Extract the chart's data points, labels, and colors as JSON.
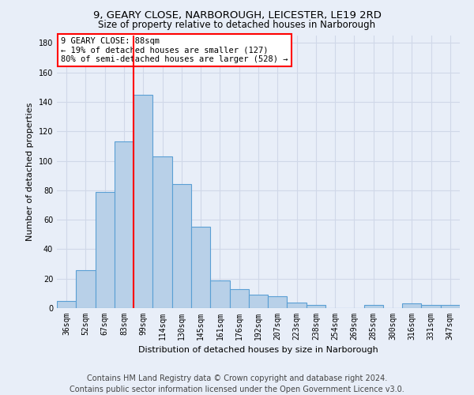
{
  "title_line1": "9, GEARY CLOSE, NARBOROUGH, LEICESTER, LE19 2RD",
  "title_line2": "Size of property relative to detached houses in Narborough",
  "xlabel": "Distribution of detached houses by size in Narborough",
  "ylabel": "Number of detached properties",
  "bar_labels": [
    "36sqm",
    "52sqm",
    "67sqm",
    "83sqm",
    "99sqm",
    "114sqm",
    "130sqm",
    "145sqm",
    "161sqm",
    "176sqm",
    "192sqm",
    "207sqm",
    "223sqm",
    "238sqm",
    "254sqm",
    "269sqm",
    "285sqm",
    "300sqm",
    "316sqm",
    "331sqm",
    "347sqm"
  ],
  "bar_values": [
    5,
    26,
    79,
    113,
    145,
    103,
    84,
    55,
    19,
    13,
    9,
    8,
    4,
    2,
    0,
    0,
    2,
    0,
    3,
    2,
    2
  ],
  "bar_color": "#b8d0e8",
  "bar_edge_color": "#5a9fd4",
  "vline_x": 3.5,
  "vline_color": "red",
  "annotation_title": "9 GEARY CLOSE: 88sqm",
  "annotation_line1": "← 19% of detached houses are smaller (127)",
  "annotation_line2": "80% of semi-detached houses are larger (528) →",
  "annotation_box_color": "white",
  "annotation_box_edge_color": "red",
  "ylim": [
    0,
    185
  ],
  "yticks": [
    0,
    20,
    40,
    60,
    80,
    100,
    120,
    140,
    160,
    180
  ],
  "footer_line1": "Contains HM Land Registry data © Crown copyright and database right 2024.",
  "footer_line2": "Contains public sector information licensed under the Open Government Licence v3.0.",
  "background_color": "#e8eef8",
  "grid_color": "#d0d8e8",
  "title_fontsize": 9.5,
  "subtitle_fontsize": 8.5,
  "footer_fontsize": 7,
  "annotation_fontsize": 7.5,
  "axis_label_fontsize": 8,
  "tick_fontsize": 7
}
